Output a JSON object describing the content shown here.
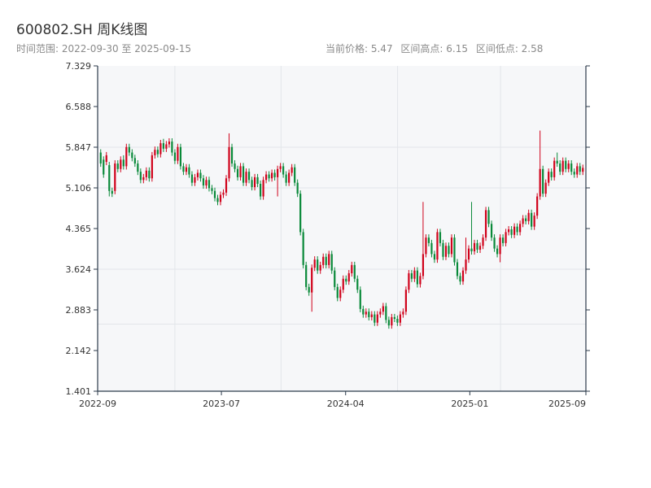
{
  "header": {
    "title": "600802.SH 周K线图",
    "range_label": "时间范围: 2022-09-30 至 2025-09-15",
    "stats": [
      "当前价格: 5.47",
      "区间高点: 6.15",
      "区间低点: 2.58"
    ]
  },
  "colors": {
    "up": "#d0021b",
    "down": "#0a8a3a",
    "axis": "#2b3a4a",
    "plot_bg": "#f6f7f9",
    "grid": "#e3e6ea"
  },
  "chart_data": {
    "type": "candlestick",
    "title": "600802.SH 周K线图",
    "ylim": [
      1.401,
      7.329
    ],
    "y_ticks": [
      "7.329",
      "6.588",
      "5.847",
      "5.106",
      "4.365",
      "3.624",
      "2.883",
      "2.142",
      "1.401"
    ],
    "x_ticks": [
      "2022-09",
      "2023-07",
      "2024-04",
      "2025-01",
      "2025-09"
    ],
    "x_range": [
      "2022-09-30",
      "2025-09-15"
    ],
    "grid": true,
    "bodies": [
      [
        5.75,
        5.55
      ],
      [
        5.62,
        5.35
      ],
      [
        5.58,
        5.7
      ],
      [
        5.52,
        5.05
      ],
      [
        5.05,
        5.0
      ],
      [
        5.05,
        5.55
      ],
      [
        5.55,
        5.45
      ],
      [
        5.45,
        5.62
      ],
      [
        5.62,
        5.5
      ],
      [
        5.5,
        5.85
      ],
      [
        5.85,
        5.75
      ],
      [
        5.75,
        5.65
      ],
      [
        5.65,
        5.55
      ],
      [
        5.55,
        5.4
      ],
      [
        5.4,
        5.25
      ],
      [
        5.25,
        5.3
      ],
      [
        5.3,
        5.42
      ],
      [
        5.42,
        5.28
      ],
      [
        5.28,
        5.7
      ],
      [
        5.7,
        5.8
      ],
      [
        5.8,
        5.72
      ],
      [
        5.72,
        5.92
      ],
      [
        5.92,
        5.82
      ],
      [
        5.82,
        5.9
      ],
      [
        5.9,
        5.95
      ],
      [
        5.95,
        5.75
      ],
      [
        5.75,
        5.6
      ],
      [
        5.6,
        5.85
      ],
      [
        5.85,
        5.5
      ],
      [
        5.5,
        5.4
      ],
      [
        5.4,
        5.48
      ],
      [
        5.48,
        5.35
      ],
      [
        5.35,
        5.2
      ],
      [
        5.2,
        5.3
      ],
      [
        5.3,
        5.38
      ],
      [
        5.38,
        5.28
      ],
      [
        5.28,
        5.15
      ],
      [
        5.15,
        5.25
      ],
      [
        5.25,
        5.1
      ],
      [
        5.1,
        5.05
      ],
      [
        5.05,
        4.92
      ],
      [
        4.92,
        4.85
      ],
      [
        4.85,
        4.98
      ],
      [
        4.98,
        5.02
      ],
      [
        5.02,
        5.28
      ],
      [
        5.28,
        5.85
      ],
      [
        5.85,
        5.55
      ],
      [
        5.55,
        5.45
      ],
      [
        5.45,
        5.3
      ],
      [
        5.3,
        5.5
      ],
      [
        5.5,
        5.2
      ],
      [
        5.2,
        5.4
      ],
      [
        5.4,
        5.25
      ],
      [
        5.25,
        5.12
      ],
      [
        5.12,
        5.3
      ],
      [
        5.3,
        5.18
      ],
      [
        5.18,
        4.95
      ],
      [
        4.95,
        5.25
      ],
      [
        5.25,
        5.35
      ],
      [
        5.35,
        5.28
      ],
      [
        5.28,
        5.38
      ],
      [
        5.38,
        5.3
      ],
      [
        5.3,
        5.45
      ],
      [
        5.45,
        5.5
      ],
      [
        5.5,
        5.35
      ],
      [
        5.35,
        5.2
      ],
      [
        5.2,
        5.38
      ],
      [
        5.38,
        5.48
      ],
      [
        5.48,
        5.2
      ],
      [
        5.2,
        5.0
      ],
      [
        5.0,
        4.3
      ],
      [
        4.3,
        3.7
      ],
      [
        3.7,
        3.3
      ],
      [
        3.3,
        3.2
      ],
      [
        3.2,
        3.65
      ],
      [
        3.65,
        3.8
      ],
      [
        3.8,
        3.6
      ],
      [
        3.6,
        3.7
      ],
      [
        3.7,
        3.85
      ],
      [
        3.85,
        3.7
      ],
      [
        3.7,
        3.9
      ],
      [
        3.9,
        3.6
      ],
      [
        3.6,
        3.3
      ],
      [
        3.3,
        3.1
      ],
      [
        3.1,
        3.25
      ],
      [
        3.25,
        3.45
      ],
      [
        3.45,
        3.4
      ],
      [
        3.4,
        3.55
      ],
      [
        3.55,
        3.7
      ],
      [
        3.7,
        3.45
      ],
      [
        3.45,
        3.25
      ],
      [
        3.25,
        2.9
      ],
      [
        2.9,
        2.8
      ],
      [
        2.8,
        2.85
      ],
      [
        2.85,
        2.75
      ],
      [
        2.75,
        2.8
      ],
      [
        2.8,
        2.65
      ],
      [
        2.65,
        2.8
      ],
      [
        2.8,
        2.85
      ],
      [
        2.85,
        2.95
      ],
      [
        2.95,
        2.7
      ],
      [
        2.7,
        2.6
      ],
      [
        2.6,
        2.75
      ],
      [
        2.75,
        2.72
      ],
      [
        2.72,
        2.65
      ],
      [
        2.65,
        2.8
      ],
      [
        2.8,
        2.85
      ],
      [
        2.85,
        3.25
      ],
      [
        3.25,
        3.55
      ],
      [
        3.55,
        3.45
      ],
      [
        3.45,
        3.6
      ],
      [
        3.6,
        3.35
      ],
      [
        3.35,
        3.5
      ],
      [
        3.5,
        3.9
      ],
      [
        3.9,
        4.2
      ],
      [
        4.2,
        4.1
      ],
      [
        4.1,
        3.9
      ],
      [
        3.9,
        3.8
      ],
      [
        3.8,
        4.3
      ],
      [
        4.3,
        4.1
      ],
      [
        4.1,
        3.85
      ],
      [
        3.85,
        4.05
      ],
      [
        4.05,
        3.9
      ],
      [
        3.9,
        4.2
      ],
      [
        4.2,
        3.75
      ],
      [
        3.75,
        3.5
      ],
      [
        3.5,
        3.4
      ],
      [
        3.4,
        3.6
      ],
      [
        3.6,
        3.8
      ],
      [
        3.8,
        4.0
      ],
      [
        4.0,
        3.95
      ],
      [
        3.95,
        4.1
      ],
      [
        4.1,
        3.98
      ],
      [
        3.98,
        4.05
      ],
      [
        4.05,
        4.2
      ],
      [
        4.2,
        4.7
      ],
      [
        4.7,
        4.45
      ],
      [
        4.45,
        4.2
      ],
      [
        4.2,
        4.0
      ],
      [
        4.0,
        3.9
      ],
      [
        3.9,
        4.2
      ],
      [
        4.2,
        4.1
      ],
      [
        4.1,
        4.3
      ],
      [
        4.3,
        4.35
      ],
      [
        4.35,
        4.25
      ],
      [
        4.25,
        4.4
      ],
      [
        4.4,
        4.3
      ],
      [
        4.3,
        4.45
      ],
      [
        4.45,
        4.55
      ],
      [
        4.55,
        4.5
      ],
      [
        4.5,
        4.65
      ],
      [
        4.65,
        4.4
      ],
      [
        4.4,
        4.6
      ],
      [
        4.6,
        4.95
      ],
      [
        4.95,
        5.45
      ],
      [
        5.45,
        5.0
      ],
      [
        5.0,
        5.2
      ],
      [
        5.2,
        5.4
      ],
      [
        5.4,
        5.3
      ],
      [
        5.3,
        5.6
      ],
      [
        5.6,
        5.55
      ],
      [
        5.55,
        5.4
      ],
      [
        5.4,
        5.6
      ],
      [
        5.6,
        5.45
      ],
      [
        5.45,
        5.55
      ],
      [
        5.55,
        5.4
      ],
      [
        5.4,
        5.35
      ],
      [
        5.35,
        5.5
      ],
      [
        5.5,
        5.4
      ],
      [
        5.4,
        5.47
      ]
    ],
    "spikes": [
      [
        3,
        4.95
      ],
      [
        8,
        5.7
      ],
      [
        22,
        6.0
      ],
      [
        45,
        6.1
      ],
      [
        62,
        4.95
      ],
      [
        74,
        2.85
      ],
      [
        113,
        4.85
      ],
      [
        128,
        4.2
      ],
      [
        130,
        4.85
      ],
      [
        140,
        3.75
      ],
      [
        154,
        6.15
      ],
      [
        160,
        5.75
      ]
    ]
  }
}
